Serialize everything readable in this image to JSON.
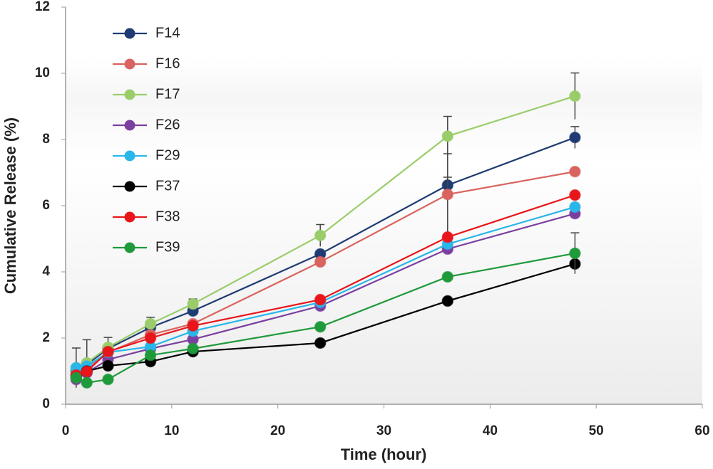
{
  "chart_data": {
    "type": "line",
    "x_label": "Time (hour)",
    "y_label": "Cumulative Release (%)",
    "x": [
      1,
      2,
      4,
      8,
      12,
      24,
      36,
      48
    ],
    "series": [
      {
        "name": "F14",
        "color": "#1f3b73",
        "values": [
          1.0,
          1.2,
          1.68,
          2.32,
          2.82,
          4.54,
          6.62,
          8.06
        ],
        "errors": [
          null,
          null,
          null,
          null,
          null,
          null,
          0.24,
          0.33
        ]
      },
      {
        "name": "F16",
        "color": "#d9635e",
        "values": [
          0.9,
          1.1,
          1.57,
          2.1,
          2.43,
          4.3,
          6.34,
          7.03
        ],
        "errors": [
          null,
          null,
          null,
          null,
          null,
          null,
          1.23,
          null
        ]
      },
      {
        "name": "F17",
        "color": "#9acd6a",
        "values": [
          1.1,
          1.25,
          1.72,
          2.43,
          3.03,
          5.1,
          8.1,
          9.31
        ],
        "errors": [
          0.6,
          0.7,
          0.3,
          0.2,
          0.15,
          0.33,
          0.6,
          0.7
        ]
      },
      {
        "name": "F26",
        "color": "#7b3fa0",
        "values": [
          0.75,
          0.95,
          1.35,
          1.68,
          1.96,
          2.97,
          4.69,
          5.76
        ]
      },
      {
        "name": "F29",
        "color": "#29b6e8",
        "values": [
          1.1,
          1.15,
          1.57,
          1.74,
          2.21,
          3.08,
          4.84,
          5.96
        ]
      },
      {
        "name": "F37",
        "color": "#000000",
        "values": [
          0.85,
          1.0,
          1.16,
          1.29,
          1.59,
          1.85,
          3.12,
          4.24
        ]
      },
      {
        "name": "F38",
        "color": "#e8161b",
        "values": [
          0.88,
          0.99,
          1.59,
          2.0,
          2.37,
          3.16,
          5.05,
          6.32
        ]
      },
      {
        "name": "F39",
        "color": "#1f9a3a",
        "values": [
          0.8,
          0.65,
          0.75,
          1.48,
          1.68,
          2.34,
          3.85,
          4.56
        ],
        "errors": [
          null,
          null,
          null,
          null,
          null,
          null,
          null,
          0.62
        ]
      }
    ],
    "xlim": [
      0,
      60
    ],
    "xticks": [
      0,
      10,
      20,
      30,
      40,
      50,
      60
    ],
    "ylim": [
      0,
      12
    ],
    "yticks": [
      0,
      2,
      4,
      6,
      8,
      10,
      12
    ],
    "legend": "upper left"
  }
}
